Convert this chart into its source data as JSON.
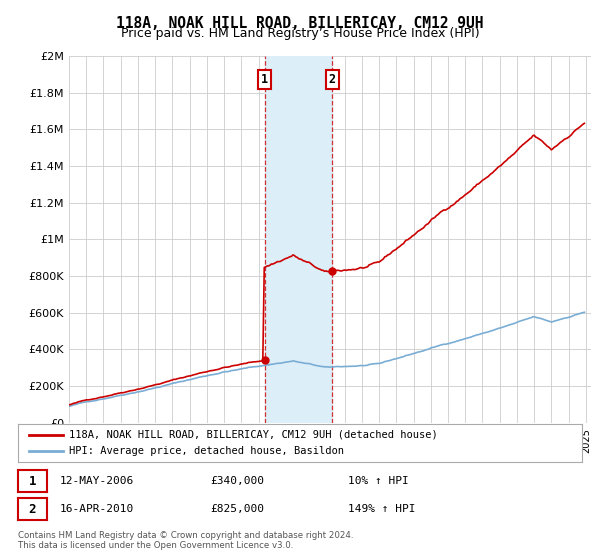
{
  "title": "118A, NOAK HILL ROAD, BILLERICAY, CM12 9UH",
  "subtitle": "Price paid vs. HM Land Registry’s House Price Index (HPI)",
  "title_fontsize": 10.5,
  "subtitle_fontsize": 9,
  "ylim": [
    0,
    2000000
  ],
  "xlim_start": 1995,
  "xlim_end": 2025.3,
  "ytick_labels": [
    "£0",
    "£200K",
    "£400K",
    "£600K",
    "£800K",
    "£1M",
    "£1.2M",
    "£1.4M",
    "£1.6M",
    "£1.8M",
    "£2M"
  ],
  "ytick_values": [
    0,
    200000,
    400000,
    600000,
    800000,
    1000000,
    1200000,
    1400000,
    1600000,
    1800000,
    2000000
  ],
  "property_color": "#cc0000",
  "hpi_color": "#7aadd4",
  "shade_color": "#dceef8",
  "sale1_x": 2006.36,
  "sale1_y": 340000,
  "sale2_x": 2010.29,
  "sale2_y": 825000,
  "legend_label1": "118A, NOAK HILL ROAD, BILLERICAY, CM12 9UH (detached house)",
  "legend_label2": "HPI: Average price, detached house, Basildon",
  "annotation1_label": "1",
  "annotation2_label": "2",
  "footer1": "Contains HM Land Registry data © Crown copyright and database right 2024.",
  "footer2": "This data is licensed under the Open Government Licence v3.0.",
  "table_row1": [
    "1",
    "12-MAY-2006",
    "£340,000",
    "10% ↑ HPI"
  ],
  "table_row2": [
    "2",
    "16-APR-2010",
    "£825,000",
    "149% ↑ HPI"
  ],
  "background_color": "#ffffff",
  "grid_color": "#cccccc"
}
